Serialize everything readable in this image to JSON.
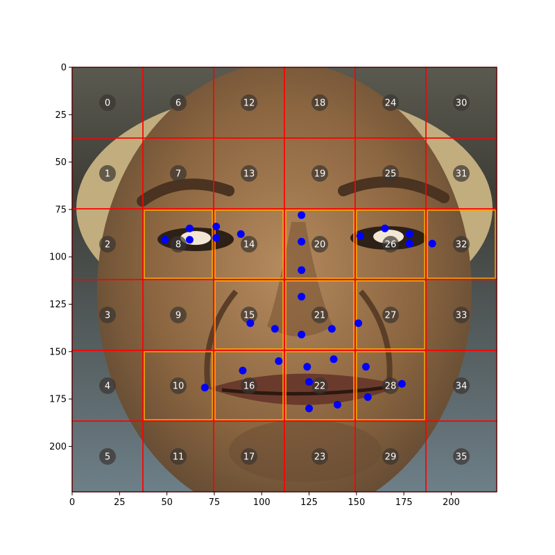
{
  "colors": {
    "grid": "#ff0000",
    "highlight": "#ffa500",
    "landmark": "#0000ff",
    "cell_marker": "#3a3530",
    "cell_text": "#ffffff",
    "axis": "#000000"
  },
  "chart_data": {
    "type": "scatter",
    "title": "",
    "xlabel": "",
    "ylabel": "",
    "xlim": [
      0,
      224
    ],
    "ylim": [
      224,
      0
    ],
    "x_ticks": [
      "0",
      "25",
      "50",
      "75",
      "100",
      "125",
      "150",
      "175",
      "200"
    ],
    "y_ticks": [
      "0",
      "25",
      "50",
      "75",
      "100",
      "125",
      "150",
      "175",
      "200"
    ],
    "grid": {
      "rows": 6,
      "cols": 6,
      "cell_size": 37.33,
      "highlighted_cells": [
        8,
        10,
        14,
        15,
        16,
        20,
        21,
        22,
        26,
        27,
        28,
        32
      ]
    },
    "cell_labels": [
      "0",
      "1",
      "2",
      "3",
      "4",
      "5",
      "6",
      "7",
      "8",
      "9",
      "10",
      "11",
      "12",
      "13",
      "14",
      "15",
      "16",
      "17",
      "18",
      "19",
      "20",
      "21",
      "22",
      "23",
      "24",
      "25",
      "26",
      "27",
      "28",
      "29",
      "30",
      "31",
      "32",
      "33",
      "34",
      "35"
    ],
    "landmarks": [
      {
        "x": 49,
        "y": 91
      },
      {
        "x": 62,
        "y": 85
      },
      {
        "x": 62,
        "y": 91
      },
      {
        "x": 76,
        "y": 84
      },
      {
        "x": 76,
        "y": 90
      },
      {
        "x": 89,
        "y": 88
      },
      {
        "x": 121,
        "y": 78
      },
      {
        "x": 121,
        "y": 92
      },
      {
        "x": 121,
        "y": 107
      },
      {
        "x": 121,
        "y": 121
      },
      {
        "x": 152,
        "y": 89
      },
      {
        "x": 165,
        "y": 85
      },
      {
        "x": 178,
        "y": 88
      },
      {
        "x": 178,
        "y": 93
      },
      {
        "x": 190,
        "y": 93
      },
      {
        "x": 94,
        "y": 135
      },
      {
        "x": 107,
        "y": 138
      },
      {
        "x": 121,
        "y": 141
      },
      {
        "x": 137,
        "y": 138
      },
      {
        "x": 151,
        "y": 135
      },
      {
        "x": 70,
        "y": 169
      },
      {
        "x": 90,
        "y": 160
      },
      {
        "x": 109,
        "y": 155
      },
      {
        "x": 124,
        "y": 158
      },
      {
        "x": 138,
        "y": 154
      },
      {
        "x": 155,
        "y": 158
      },
      {
        "x": 174,
        "y": 167
      },
      {
        "x": 125,
        "y": 166
      },
      {
        "x": 156,
        "y": 174
      },
      {
        "x": 140,
        "y": 178
      },
      {
        "x": 125,
        "y": 180
      }
    ]
  }
}
